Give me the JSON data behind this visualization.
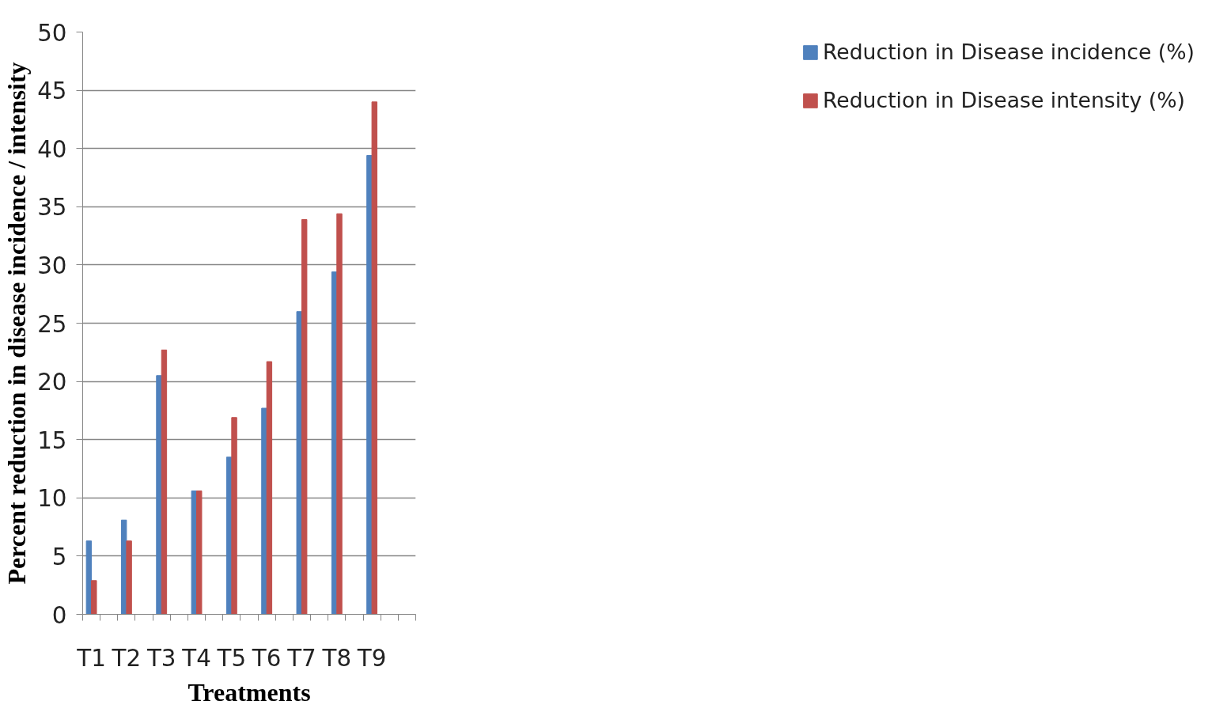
{
  "chart_data": {
    "type": "bar",
    "xlabel": "Treatments",
    "ylabel": "Percent reduction in disease incidence / intensity",
    "categories": [
      "T1",
      null,
      "T2",
      null,
      "T3",
      null,
      "T4",
      null,
      "T5",
      null,
      "T6",
      null,
      "T7",
      null,
      "T8",
      null,
      "T9",
      null,
      null
    ],
    "series": [
      {
        "name": "Reduction in Disease incidence (%)",
        "color": "#4f81bd",
        "values": [
          6.3,
          null,
          8.1,
          null,
          20.5,
          null,
          10.6,
          null,
          13.5,
          null,
          17.7,
          null,
          26.0,
          null,
          29.4,
          null,
          39.4,
          null,
          null
        ]
      },
      {
        "name": "Reduction in Disease intensity (%)",
        "color": "#c0504d",
        "values": [
          2.9,
          null,
          6.3,
          null,
          22.7,
          null,
          10.6,
          null,
          16.9,
          null,
          21.7,
          null,
          33.9,
          null,
          34.4,
          null,
          44.0,
          null,
          null
        ]
      }
    ],
    "ylim": [
      0,
      50
    ],
    "yticks": [
      0,
      5,
      10,
      15,
      20,
      25,
      30,
      35,
      40,
      45,
      50
    ],
    "grid": "y",
    "legend": "right"
  }
}
